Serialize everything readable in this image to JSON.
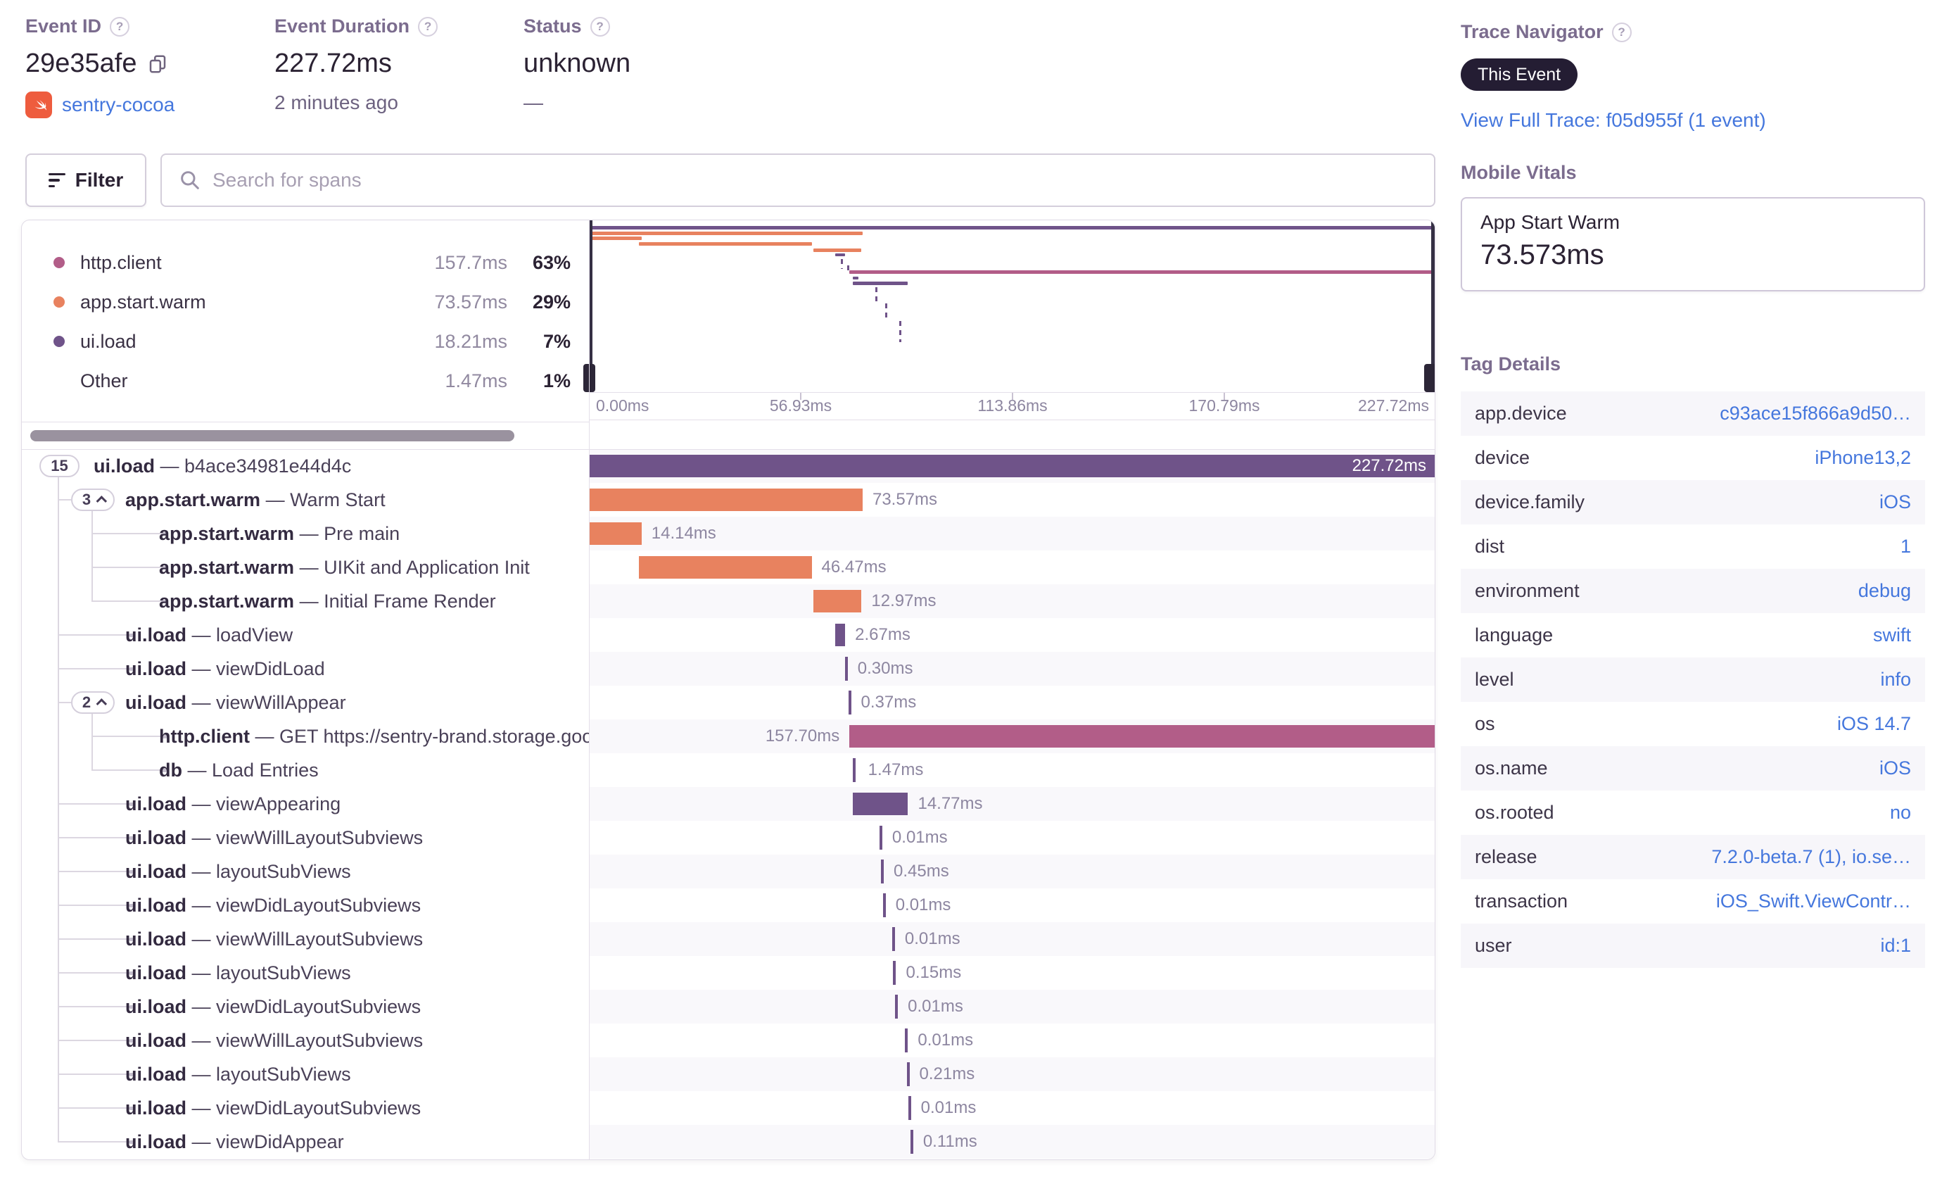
{
  "header": {
    "event_id": {
      "label": "Event ID",
      "value": "29e35afe",
      "project": "sentry-cocoa"
    },
    "duration": {
      "label": "Event Duration",
      "value": "227.72ms",
      "ago": "2 minutes ago"
    },
    "status": {
      "label": "Status",
      "value": "unknown",
      "sub": "—"
    }
  },
  "trace_navigator": {
    "label": "Trace Navigator",
    "badge": "This Event",
    "link": "View Full Trace: f05d955f (1 event)"
  },
  "toolbar": {
    "filter": "Filter",
    "search_placeholder": "Search for spans"
  },
  "legend": {
    "items": [
      {
        "name": "http.client",
        "duration": "157.7ms",
        "pct": "63%",
        "color": "#b25d88"
      },
      {
        "name": "app.start.warm",
        "duration": "73.57ms",
        "pct": "29%",
        "color": "#e8825f"
      },
      {
        "name": "ui.load",
        "duration": "18.21ms",
        "pct": "7%",
        "color": "#6f5389"
      },
      {
        "name": "Other",
        "duration": "1.47ms",
        "pct": "1%",
        "color": ""
      }
    ]
  },
  "timeline": {
    "total_ms": 227.72,
    "axis_labels": [
      "0.00ms",
      "56.93ms",
      "113.86ms",
      "170.79ms",
      "227.72ms"
    ]
  },
  "spans": [
    {
      "count": "15",
      "chevron": false,
      "depth": 0,
      "op": "ui.load",
      "desc": "b4ace34981e44d4c",
      "start_ms": 0,
      "duration_ms": 227.72,
      "duration_label": "227.72ms",
      "color": "purple",
      "label_pos": "inside"
    },
    {
      "count": "3",
      "chevron": true,
      "depth": 1,
      "op": "app.start.warm",
      "desc": "Warm Start",
      "start_ms": 0,
      "duration_ms": 73.57,
      "duration_label": "73.57ms",
      "color": "orange"
    },
    {
      "depth": 2,
      "op": "app.start.warm",
      "desc": "Pre main",
      "start_ms": 0,
      "duration_ms": 14.14,
      "duration_label": "14.14ms",
      "color": "orange"
    },
    {
      "depth": 2,
      "op": "app.start.warm",
      "desc": "UIKit and Application Init",
      "start_ms": 13.4,
      "duration_ms": 46.47,
      "duration_label": "46.47ms",
      "color": "orange"
    },
    {
      "depth": 2,
      "op": "app.start.warm",
      "desc": "Initial Frame Render",
      "start_ms": 60.3,
      "duration_ms": 12.97,
      "duration_label": "12.97ms",
      "color": "orange"
    },
    {
      "depth": 1,
      "op": "ui.load",
      "desc": "loadView",
      "start_ms": 66.2,
      "duration_ms": 2.67,
      "duration_label": "2.67ms",
      "color": "purple"
    },
    {
      "depth": 1,
      "op": "ui.load",
      "desc": "viewDidLoad",
      "start_ms": 68.8,
      "duration_ms": 0.3,
      "duration_label": "0.30ms",
      "color": "purple"
    },
    {
      "count": "2",
      "chevron": true,
      "depth": 1,
      "op": "ui.load",
      "desc": "viewWillAppear",
      "start_ms": 69.7,
      "duration_ms": 0.37,
      "duration_label": "0.37ms",
      "color": "purple"
    },
    {
      "depth": 2,
      "op": "http.client",
      "desc": "GET https://sentry-brand.storage.googlea",
      "start_ms": 70.02,
      "duration_ms": 157.7,
      "duration_label": "157.70ms",
      "color": "pink",
      "label_pos": "before"
    },
    {
      "depth": 2,
      "op": "db",
      "desc": "Load Entries",
      "start_ms": 70.9,
      "duration_ms": 1.47,
      "duration_label": "1.47ms",
      "color": "purple"
    },
    {
      "depth": 1,
      "op": "ui.load",
      "desc": "viewAppearing",
      "start_ms": 71.0,
      "duration_ms": 14.77,
      "duration_label": "14.77ms",
      "color": "purple"
    },
    {
      "depth": 1,
      "op": "ui.load",
      "desc": "viewWillLayoutSubviews",
      "start_ms": 78.1,
      "duration_ms": 0.01,
      "duration_label": "0.01ms",
      "color": "purple"
    },
    {
      "depth": 1,
      "op": "ui.load",
      "desc": "layoutSubViews",
      "start_ms": 78.5,
      "duration_ms": 0.45,
      "duration_label": "0.45ms",
      "color": "purple"
    },
    {
      "depth": 1,
      "op": "ui.load",
      "desc": "viewDidLayoutSubviews",
      "start_ms": 79.0,
      "duration_ms": 0.01,
      "duration_label": "0.01ms",
      "color": "purple"
    },
    {
      "depth": 1,
      "op": "ui.load",
      "desc": "viewWillLayoutSubviews",
      "start_ms": 81.5,
      "duration_ms": 0.01,
      "duration_label": "0.01ms",
      "color": "purple"
    },
    {
      "depth": 1,
      "op": "ui.load",
      "desc": "layoutSubViews",
      "start_ms": 81.8,
      "duration_ms": 0.15,
      "duration_label": "0.15ms",
      "color": "purple"
    },
    {
      "depth": 1,
      "op": "ui.load",
      "desc": "viewDidLayoutSubviews",
      "start_ms": 82.3,
      "duration_ms": 0.01,
      "duration_label": "0.01ms",
      "color": "purple"
    },
    {
      "depth": 1,
      "op": "ui.load",
      "desc": "viewWillLayoutSubviews",
      "start_ms": 85.0,
      "duration_ms": 0.01,
      "duration_label": "0.01ms",
      "color": "purple"
    },
    {
      "depth": 1,
      "op": "ui.load",
      "desc": "layoutSubViews",
      "start_ms": 85.4,
      "duration_ms": 0.21,
      "duration_label": "0.21ms",
      "color": "purple"
    },
    {
      "depth": 1,
      "op": "ui.load",
      "desc": "viewDidLayoutSubviews",
      "start_ms": 85.8,
      "duration_ms": 0.01,
      "duration_label": "0.01ms",
      "color": "purple"
    },
    {
      "depth": 1,
      "op": "ui.load",
      "desc": "viewDidAppear",
      "start_ms": 86.4,
      "duration_ms": 0.11,
      "duration_label": "0.11ms",
      "color": "purple"
    }
  ],
  "mobile_vitals": {
    "title": "Mobile Vitals",
    "metric": "App Start Warm",
    "value": "73.573ms"
  },
  "tag_details": {
    "title": "Tag Details",
    "rows": [
      {
        "key": "app.device",
        "value": "c93ace15f866a9d50…"
      },
      {
        "key": "device",
        "value": "iPhone13,2"
      },
      {
        "key": "device.family",
        "value": "iOS"
      },
      {
        "key": "dist",
        "value": "1"
      },
      {
        "key": "environment",
        "value": "debug"
      },
      {
        "key": "language",
        "value": "swift"
      },
      {
        "key": "level",
        "value": "info"
      },
      {
        "key": "os",
        "value": "iOS 14.7"
      },
      {
        "key": "os.name",
        "value": "iOS"
      },
      {
        "key": "os.rooted",
        "value": "no"
      },
      {
        "key": "release",
        "value": "7.2.0-beta.7 (1), io.se…"
      },
      {
        "key": "transaction",
        "value": "iOS_Swift.ViewContr…"
      },
      {
        "key": "user",
        "value": "id:1"
      }
    ]
  },
  "colors": {
    "purple": "#6f5389",
    "orange": "#e8825f",
    "pink": "#b25d88",
    "accent_blue": "#4577dd"
  }
}
